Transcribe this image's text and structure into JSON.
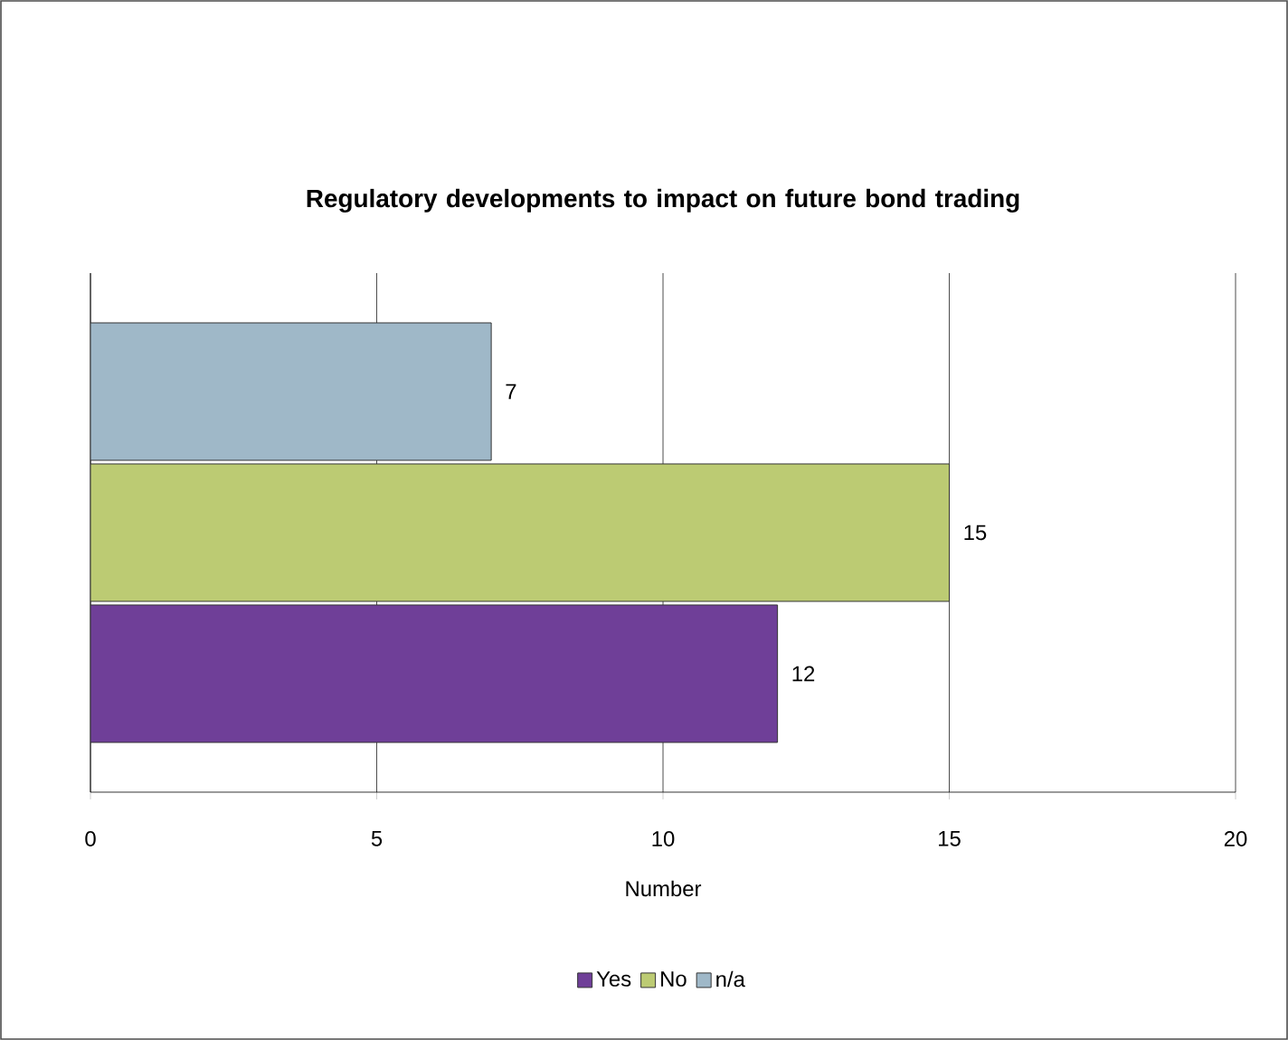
{
  "chart_data": {
    "type": "bar",
    "orientation": "horizontal",
    "title": "Regulatory developments to impact on future bond trading",
    "xlabel": "Number",
    "categories": [
      null
    ],
    "series": [
      {
        "name": "Yes",
        "color": "#6f3f98",
        "values": [
          12
        ]
      },
      {
        "name": "No",
        "color": "#bccb73",
        "values": [
          15
        ]
      },
      {
        "name": "n/a",
        "color": "#9fb8c8",
        "values": [
          7
        ]
      }
    ],
    "xlim": [
      0,
      20
    ],
    "xticks": [
      0,
      5,
      10,
      15,
      20
    ],
    "grid": "x",
    "legend": "bottom",
    "data_labels": true
  }
}
